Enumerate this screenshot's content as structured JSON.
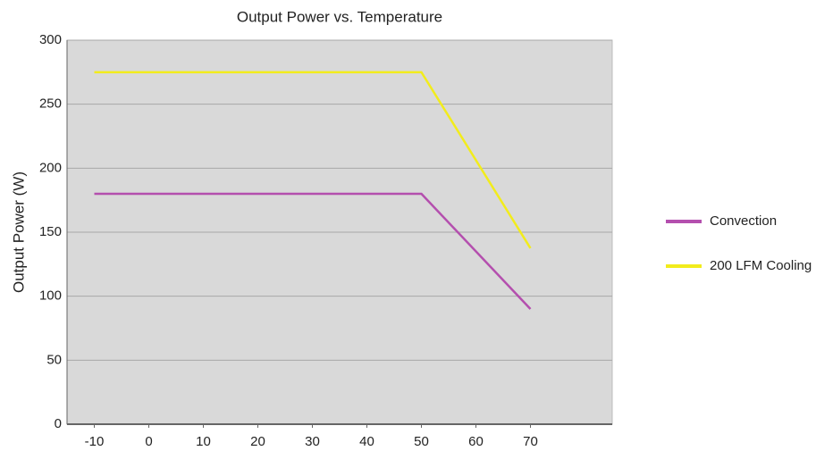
{
  "chart_data": {
    "type": "line",
    "title": "Output Power vs. Temperature",
    "y_label": "Output Power (W)",
    "x": [
      -10,
      50,
      70
    ],
    "series": [
      {
        "name": "Convection",
        "color": "#b44fae",
        "values": [
          180,
          180,
          90
        ]
      },
      {
        "name": "200 LFM Cooling",
        "color": "#f2ec1c",
        "values": [
          275,
          275,
          137.5
        ]
      }
    ],
    "xlim": [
      -15,
      85
    ],
    "xticks": [
      -10,
      0,
      10,
      20,
      30,
      40,
      50,
      60,
      70
    ],
    "ylim": [
      0,
      300
    ],
    "yticks": [
      0,
      50,
      100,
      150,
      200,
      250,
      300
    ],
    "grid": true,
    "legend": "right"
  }
}
